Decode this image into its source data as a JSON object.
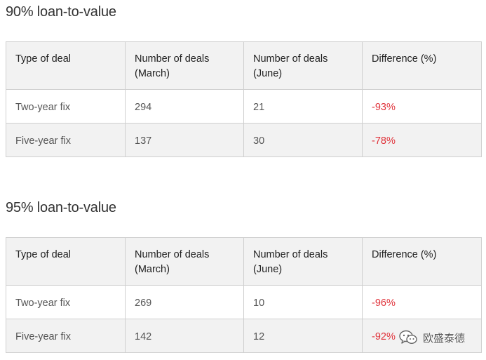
{
  "sections": [
    {
      "title": "90% loan-to-value",
      "headers": [
        "Type of deal",
        "Number of deals (March)",
        "Number of deals (June)",
        "Difference (%)"
      ],
      "rows": [
        {
          "type": "Two-year fix",
          "march": "294",
          "june": "21",
          "difference": "-93%"
        },
        {
          "type": "Five-year fix",
          "march": "137",
          "june": "30",
          "difference": "-78%"
        }
      ]
    },
    {
      "title": "95% loan-to-value",
      "headers": [
        "Type of deal",
        "Number of deals (March)",
        "Number of deals (June)",
        "Difference (%)"
      ],
      "rows": [
        {
          "type": "Two-year fix",
          "march": "269",
          "june": "10",
          "difference": "-96%"
        },
        {
          "type": "Five-year fix",
          "march": "142",
          "june": "12",
          "difference": "-92%"
        }
      ]
    }
  ],
  "watermark": {
    "text": "欧盛泰德",
    "icon": "wechat-logo-icon"
  },
  "colors": {
    "negative": "#e0323a",
    "header_bg": "#f2f2f2",
    "border": "#cfcfcf"
  }
}
